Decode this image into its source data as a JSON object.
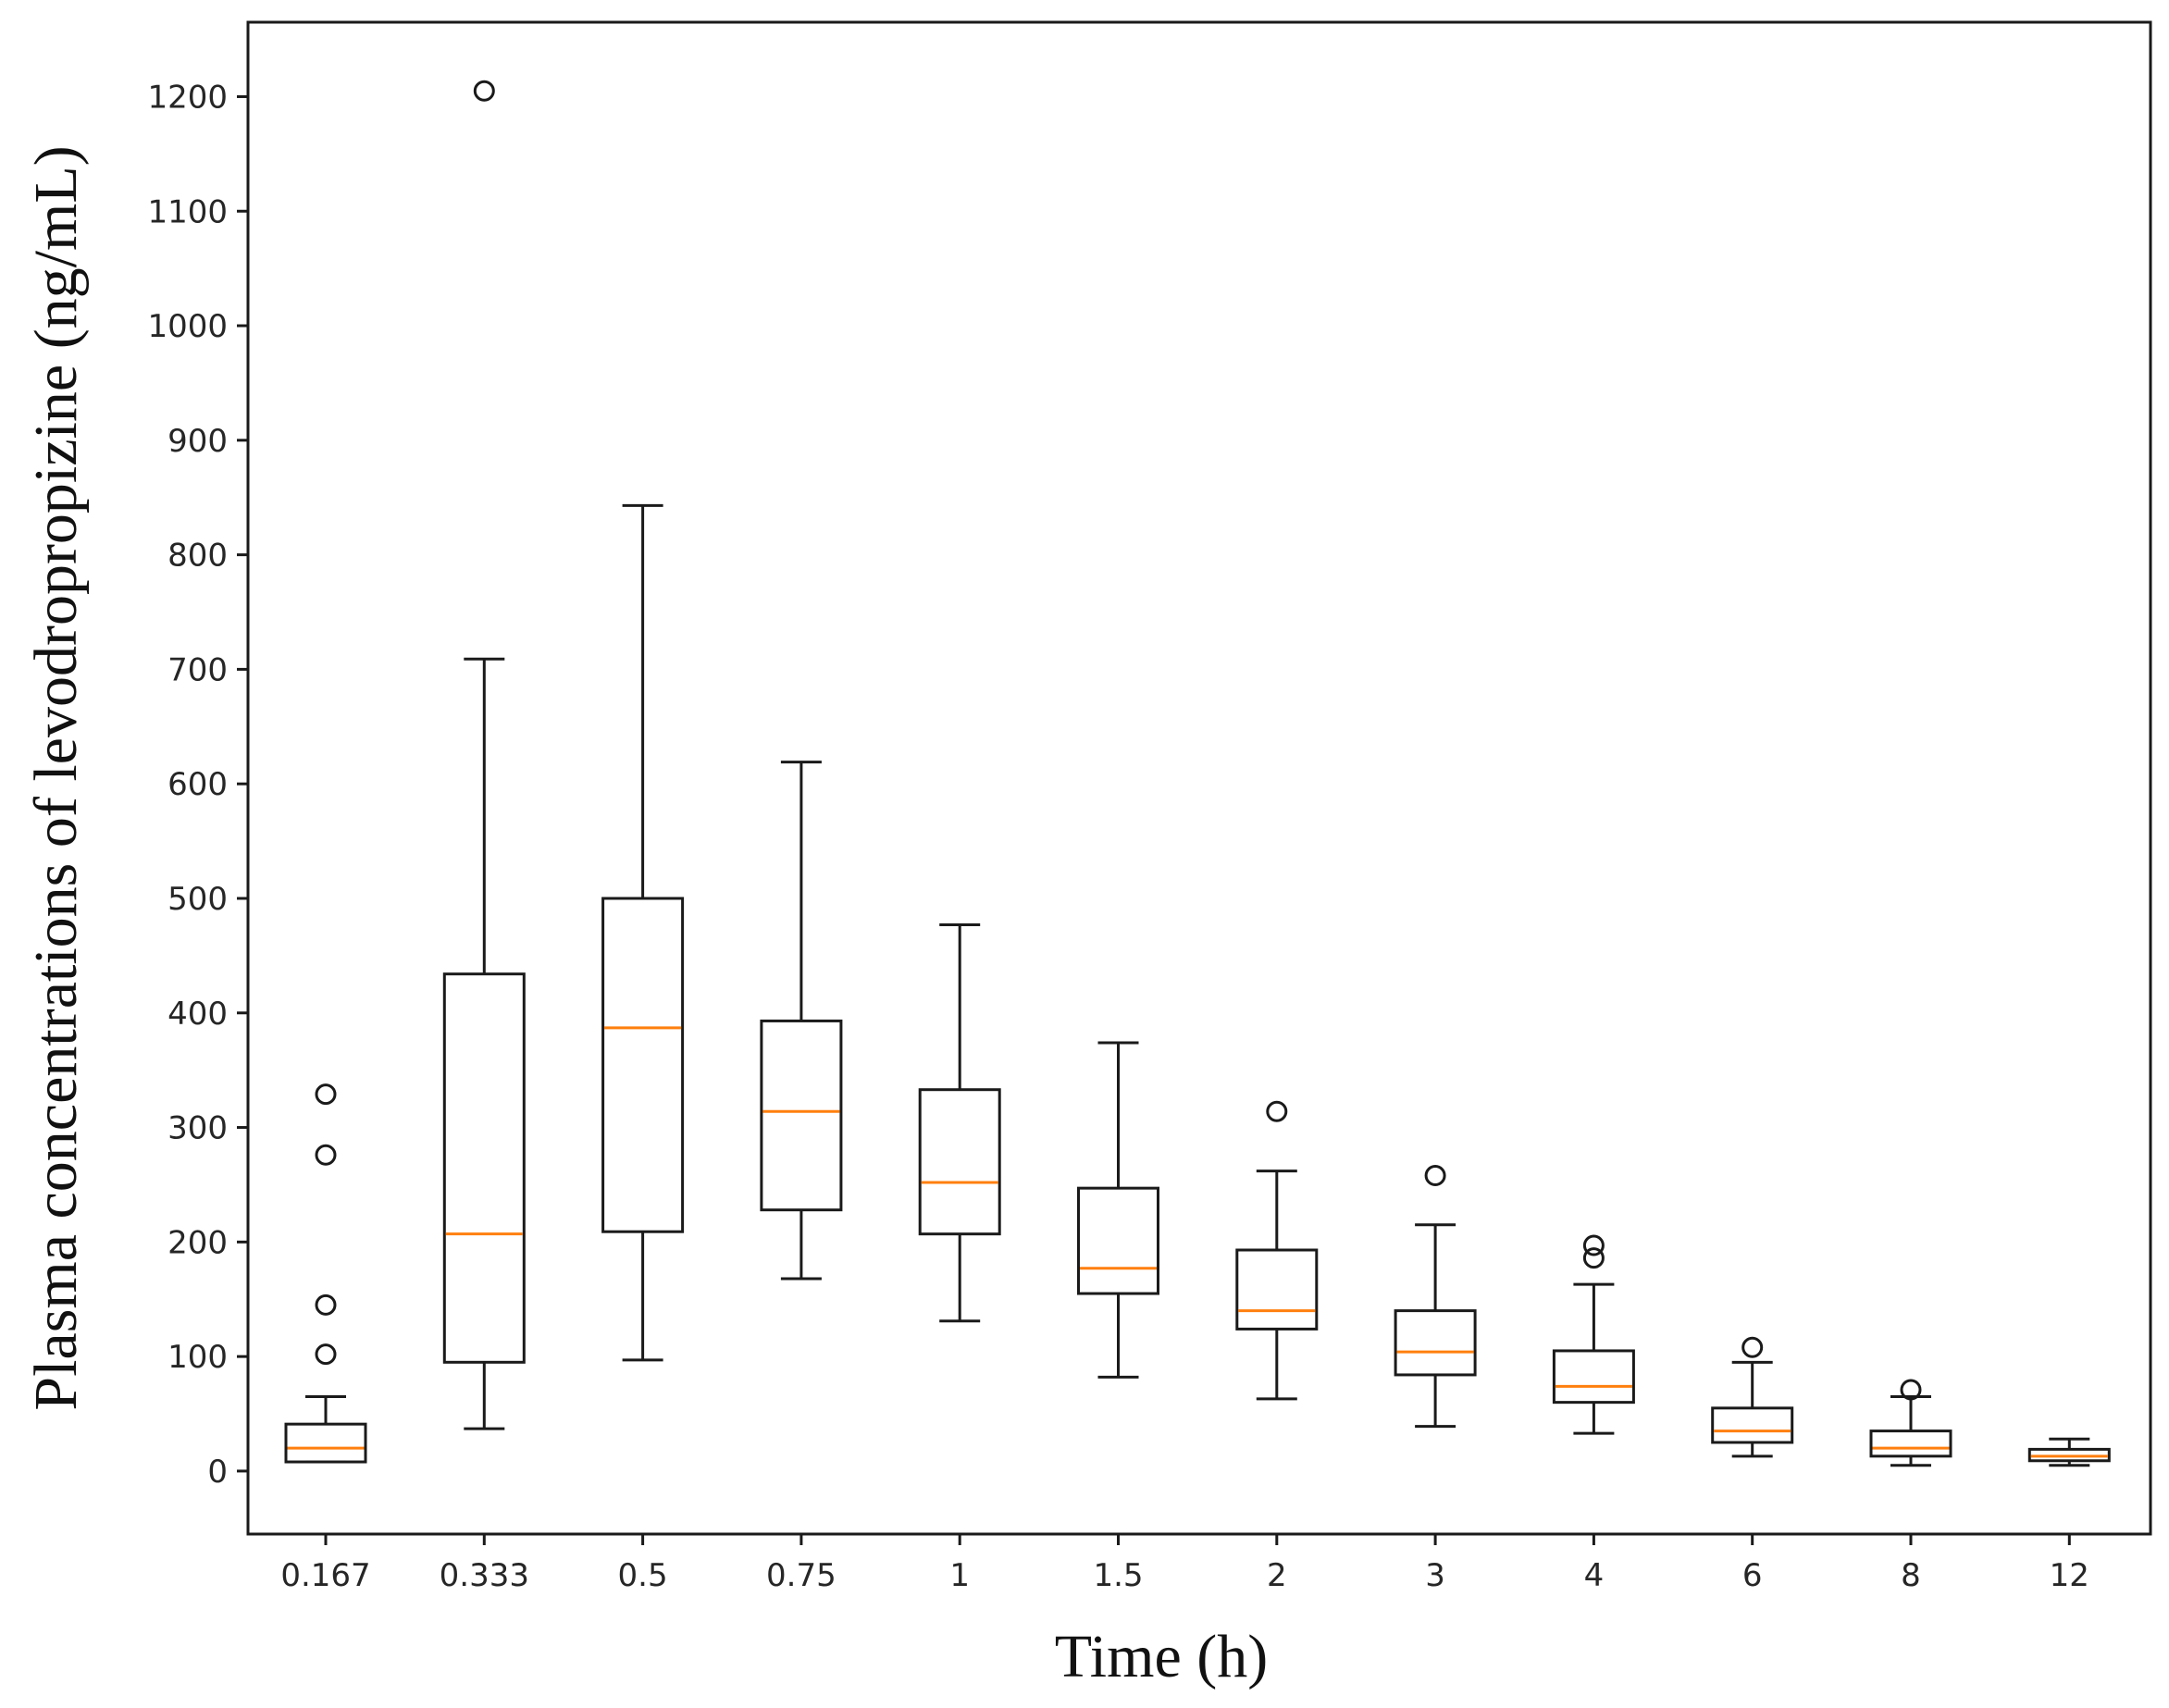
{
  "chart_data": {
    "type": "boxplot",
    "title": "",
    "xlabel": "Time (h)",
    "ylabel": "Plasma concentrations of levodropropizine (ng/mL)",
    "ylim": [
      -55,
      1265
    ],
    "yticks": [
      0,
      100,
      200,
      300,
      400,
      500,
      600,
      700,
      800,
      900,
      1000,
      1100,
      1200
    ],
    "categories": [
      "0.167",
      "0.333",
      "0.5",
      "0.75",
      "1",
      "1.5",
      "2",
      "3",
      "4",
      "6",
      "8",
      "12"
    ],
    "series": [
      {
        "name": "0.167",
        "whisker_low": 8,
        "q1": 8,
        "median": 20,
        "q3": 41,
        "whisker_high": 65,
        "outliers": [
          102,
          145,
          276,
          329
        ]
      },
      {
        "name": "0.333",
        "whisker_low": 37,
        "q1": 95,
        "median": 207,
        "q3": 434,
        "whisker_high": 709,
        "outliers": [
          1205
        ]
      },
      {
        "name": "0.5",
        "whisker_low": 97,
        "q1": 209,
        "median": 387,
        "q3": 500,
        "whisker_high": 843,
        "outliers": []
      },
      {
        "name": "0.75",
        "whisker_low": 168,
        "q1": 228,
        "median": 314,
        "q3": 393,
        "whisker_high": 619,
        "outliers": []
      },
      {
        "name": "1",
        "whisker_low": 131,
        "q1": 207,
        "median": 252,
        "q3": 333,
        "whisker_high": 477,
        "outliers": []
      },
      {
        "name": "1.5",
        "whisker_low": 82,
        "q1": 155,
        "median": 177,
        "q3": 247,
        "whisker_high": 374,
        "outliers": []
      },
      {
        "name": "2",
        "whisker_low": 63,
        "q1": 124,
        "median": 140,
        "q3": 193,
        "whisker_high": 262,
        "outliers": [
          314
        ]
      },
      {
        "name": "3",
        "whisker_low": 39,
        "q1": 84,
        "median": 104,
        "q3": 140,
        "whisker_high": 215,
        "outliers": [
          258
        ]
      },
      {
        "name": "4",
        "whisker_low": 33,
        "q1": 60,
        "median": 74,
        "q3": 105,
        "whisker_high": 163,
        "outliers": [
          186,
          197
        ]
      },
      {
        "name": "6",
        "whisker_low": 13,
        "q1": 25,
        "median": 35,
        "q3": 55,
        "whisker_high": 95,
        "outliers": [
          108
        ]
      },
      {
        "name": "8",
        "whisker_low": 5,
        "q1": 13,
        "median": 20,
        "q3": 35,
        "whisker_high": 65,
        "outliers": [
          71
        ]
      },
      {
        "name": "12",
        "whisker_low": 5,
        "q1": 9,
        "median": 13,
        "q3": 19,
        "whisker_high": 28,
        "outliers": []
      }
    ],
    "grid": false,
    "colors": {
      "box": "#1a1a1a",
      "median": "#ff7f0e",
      "axes": "#1a1a1a"
    }
  }
}
